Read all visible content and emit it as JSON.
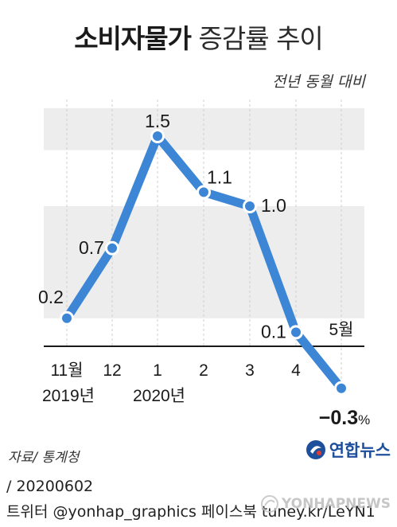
{
  "title_bold": "소비자물가",
  "title_light": "증감률 추이",
  "subtitle": "전년 동월 대비",
  "source": "자료/ 통계청",
  "logo_text": "연합뉴스",
  "footer_line1": "/ 20200602",
  "footer_line2": "트위터 @yonhap_graphics  페이스북 tuney.kr/LeYN1",
  "watermark_text": "YONHAPNEWS",
  "colors": {
    "line": "#3d86d6",
    "band": "#ededed",
    "point_stroke": "#ffffff"
  },
  "chart_data": {
    "type": "line",
    "title": "소비자물가 증감률 추이",
    "subtitle": "전년 동월 대비",
    "x": [
      "11월",
      "12",
      "1",
      "2",
      "3",
      "4",
      "5월"
    ],
    "year_labels": [
      {
        "x": "11월",
        "label": "2019년"
      },
      {
        "x": "1",
        "label": "2020년"
      }
    ],
    "values": [
      0.2,
      0.7,
      1.5,
      1.1,
      1.0,
      0.1,
      -0.3
    ],
    "data_labels": [
      "0.2",
      "0.7",
      "1.5",
      "1.1",
      "1.0",
      "0.1",
      "−0.3"
    ],
    "unit": "%",
    "ylim": [
      -0.5,
      1.8
    ],
    "grid": true
  }
}
